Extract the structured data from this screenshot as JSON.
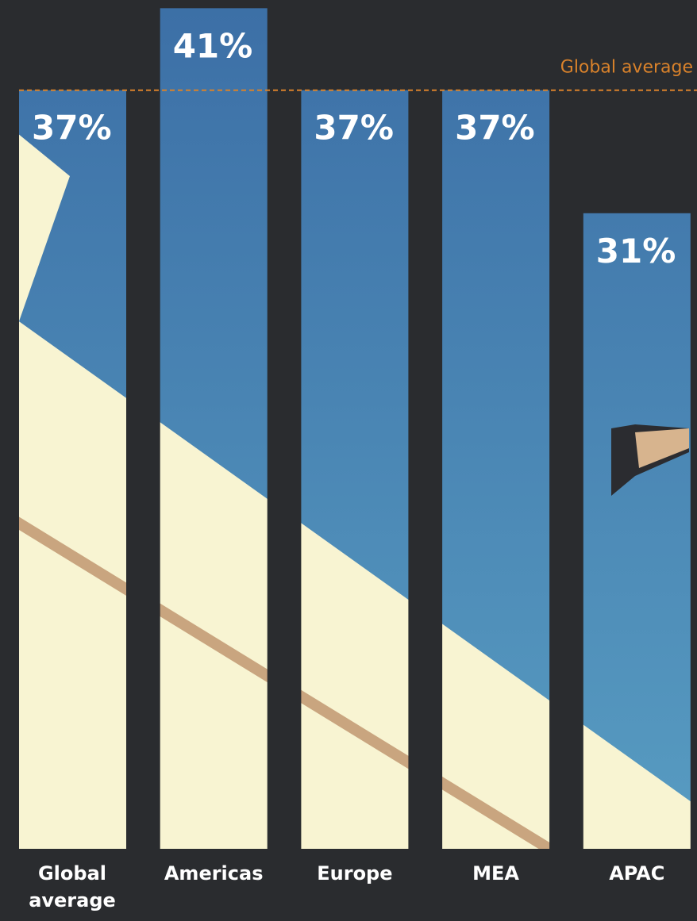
{
  "chart_data": {
    "type": "bar",
    "categories": [
      "Global average",
      "Americas",
      "Europe",
      "MEA",
      "APAC"
    ],
    "values": [
      37,
      41,
      37,
      37,
      31
    ],
    "value_labels": [
      "37%",
      "41%",
      "37%",
      "37%",
      "31%"
    ],
    "color": "#3c6fa6",
    "ylim": [
      0,
      41.4
    ],
    "reference_line": {
      "label": "Global average",
      "value": 37,
      "color": "#d9822b"
    }
  }
}
